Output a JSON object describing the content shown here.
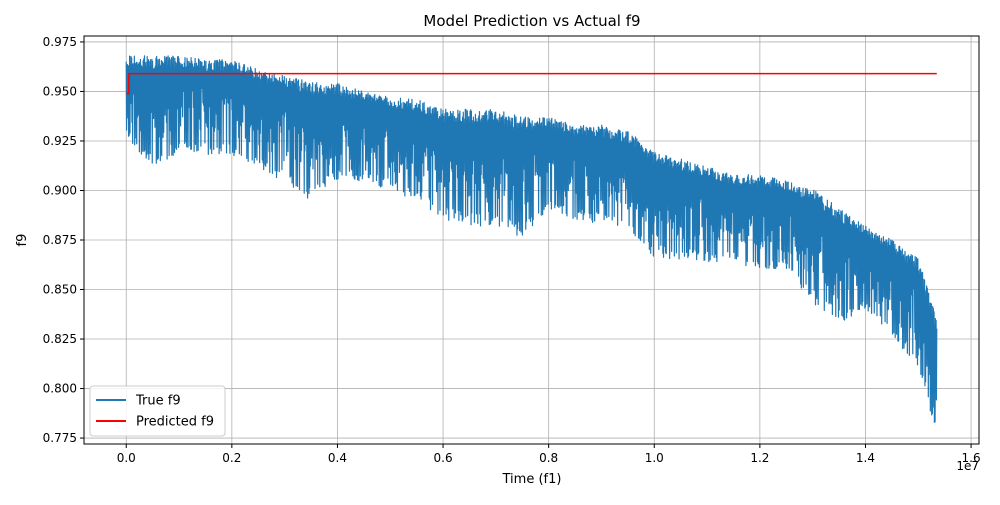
{
  "chart_data": {
    "type": "line",
    "title": "Model Prediction vs Actual f9",
    "xlabel": "Time (f1)",
    "ylabel": "f9",
    "x_offset_label": "1e7",
    "xlim": [
      -0.08,
      1.615
    ],
    "ylim": [
      0.772,
      0.978
    ],
    "x_tick_values": [
      0.0,
      0.2,
      0.4,
      0.6,
      0.8,
      1.0,
      1.2,
      1.4,
      1.6
    ],
    "x_tick_labels": [
      "0.0",
      "0.2",
      "0.4",
      "0.6",
      "0.8",
      "1.0",
      "1.2",
      "1.4",
      "1.6"
    ],
    "y_tick_values": [
      0.775,
      0.8,
      0.825,
      0.85,
      0.875,
      0.9,
      0.925,
      0.95,
      0.975
    ],
    "y_tick_labels": [
      "0.775",
      "0.800",
      "0.825",
      "0.850",
      "0.875",
      "0.900",
      "0.925",
      "0.950",
      "0.975"
    ],
    "grid": true,
    "legend_position": "lower-left",
    "series": [
      {
        "name": "True f9",
        "color": "#1f77b4",
        "x": [
          0.0,
          0.05,
          0.1,
          0.15,
          0.2,
          0.25,
          0.3,
          0.35,
          0.4,
          0.45,
          0.5,
          0.55,
          0.6,
          0.65,
          0.7,
          0.75,
          0.8,
          0.85,
          0.9,
          0.95,
          1.0,
          1.05,
          1.1,
          1.15,
          1.2,
          1.25,
          1.3,
          1.35,
          1.4,
          1.45,
          1.5,
          1.535
        ],
        "y_upper": [
          0.968,
          0.968,
          0.968,
          0.966,
          0.966,
          0.961,
          0.958,
          0.955,
          0.954,
          0.95,
          0.947,
          0.946,
          0.941,
          0.941,
          0.941,
          0.937,
          0.937,
          0.933,
          0.933,
          0.93,
          0.92,
          0.916,
          0.912,
          0.908,
          0.908,
          0.905,
          0.901,
          0.891,
          0.882,
          0.875,
          0.866,
          0.835
        ],
        "y_lower": [
          0.928,
          0.91,
          0.92,
          0.918,
          0.918,
          0.912,
          0.904,
          0.895,
          0.905,
          0.905,
          0.9,
          0.895,
          0.885,
          0.882,
          0.882,
          0.876,
          0.89,
          0.885,
          0.883,
          0.88,
          0.866,
          0.865,
          0.864,
          0.864,
          0.86,
          0.86,
          0.843,
          0.833,
          0.84,
          0.826,
          0.81,
          0.777
        ]
      },
      {
        "name": "Predicted f9",
        "color": "#ff0000",
        "x": [
          0.0,
          0.005,
          0.005,
          1.535
        ],
        "y": [
          0.949,
          0.949,
          0.959,
          0.959
        ]
      }
    ]
  }
}
